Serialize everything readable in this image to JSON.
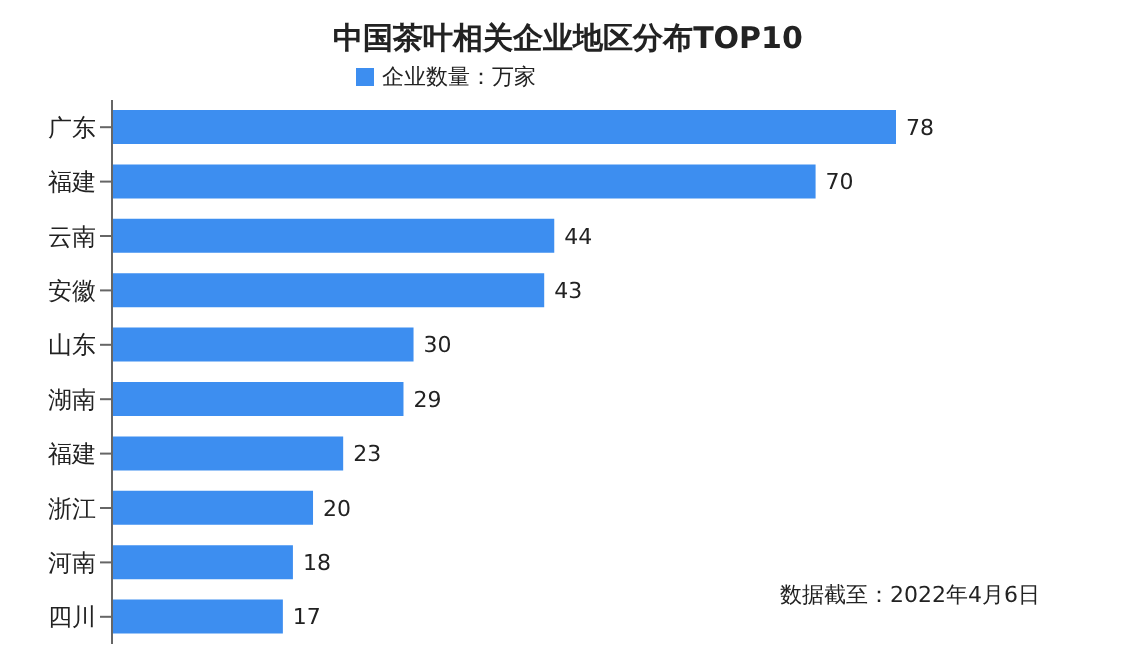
{
  "chart_data": {
    "type": "bar",
    "orientation": "horizontal",
    "title": "中国茶叶相关企业地区分布TOP10",
    "categories": [
      "广东",
      "福建",
      "云南",
      "安徽",
      "山东",
      "湖南",
      "福建",
      "浙江",
      "河南",
      "四川"
    ],
    "series": [
      {
        "name": "企业数量：万家",
        "color": "#3d8ef0",
        "values": [
          78,
          70,
          44,
          43,
          30,
          29,
          23,
          20,
          18,
          17
        ]
      }
    ],
    "data_labels": true,
    "legend": "top",
    "annotations": [
      "数据截至：2022年4月6日"
    ]
  }
}
